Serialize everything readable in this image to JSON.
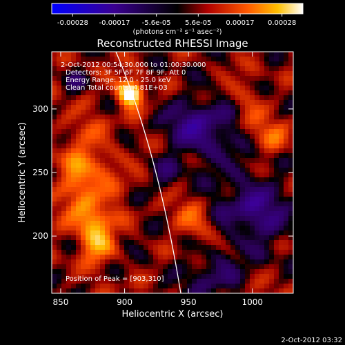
{
  "chart_data": {
    "type": "heatmap",
    "title": "Reconstructed RHESSI Image",
    "xlabel": "Heliocentric X (arcsec)",
    "ylabel": "Heliocentric Y (arcsec)",
    "xlim": [
      843,
      1032
    ],
    "ylim": [
      155,
      345
    ],
    "xticks": [
      850,
      900,
      950,
      1000
    ],
    "yticks": [
      200,
      250,
      300
    ],
    "colorbar": {
      "ticks": [
        "-0.00028",
        "-0.00017",
        "-5.6e-05",
        "5.6e-05",
        "0.00017",
        "0.00028"
      ],
      "unit": "(photons cm⁻² s⁻¹ asec⁻²)",
      "range": [
        -0.00028,
        0.00028
      ]
    },
    "annotations": [
      "2-Oct-2012 00:54:30.000 to 01:00:30.000",
      "Detectors: 3F 5F 6F 7F 8F 9F, Att 0",
      "Energy Range: 12.0 - 25.0 keV",
      "Clean    Total counts: 4.81E+03"
    ],
    "peak_label": "Position of Peak = [903,310]",
    "peak": [
      903,
      310
    ],
    "grid": false,
    "legend": "none"
  },
  "footer": {
    "timestamp": "2-Oct-2012 03:32"
  }
}
